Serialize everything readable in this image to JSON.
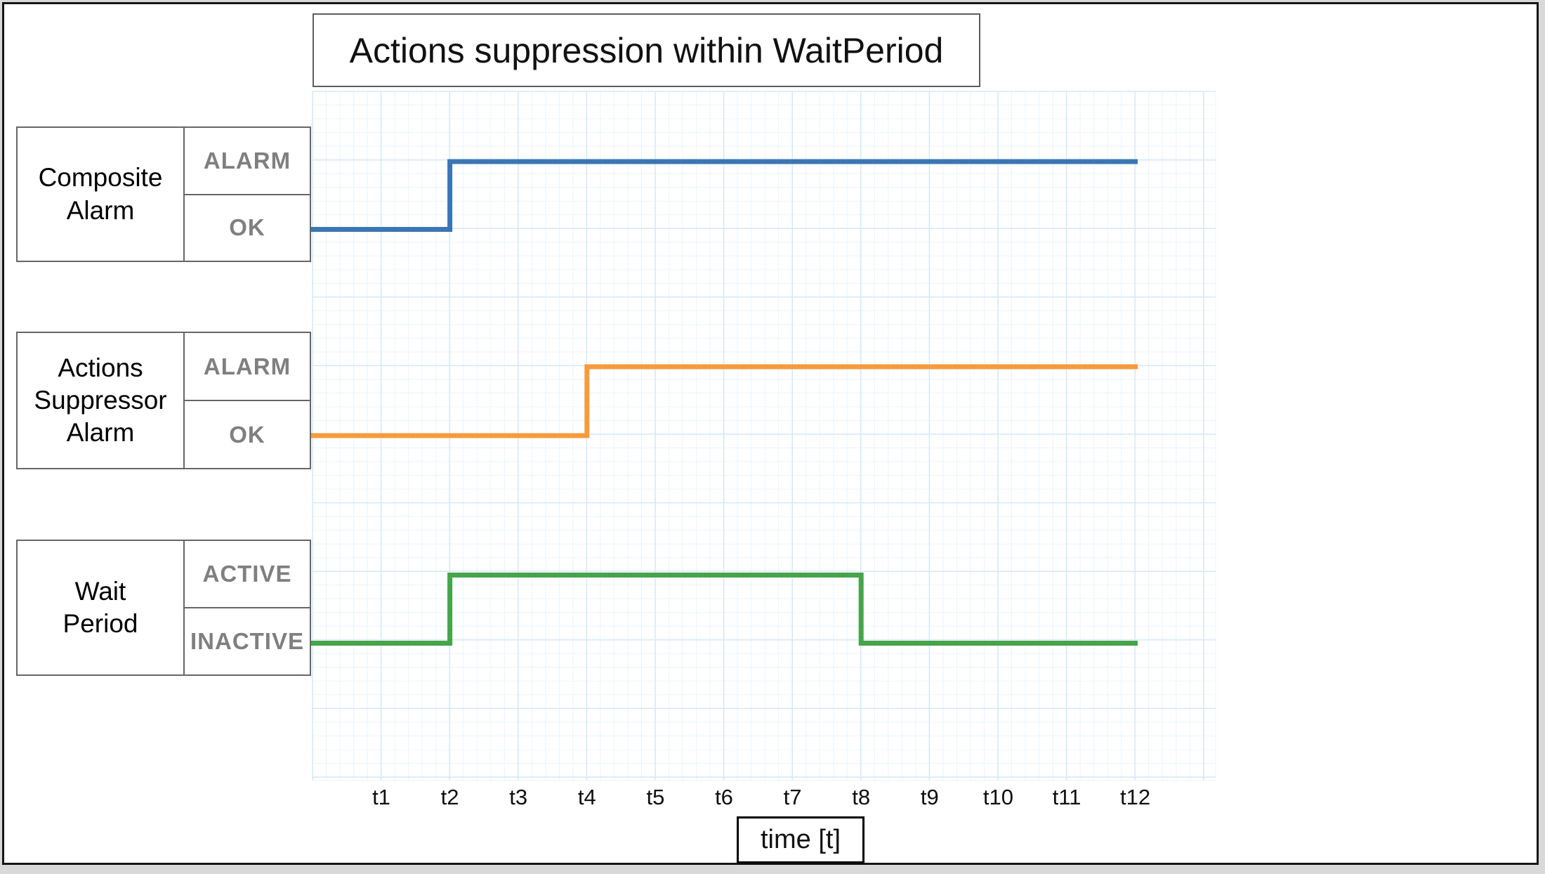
{
  "title": "Actions suppression within WaitPeriod",
  "colors": {
    "grid_minor": "#eaf4fb",
    "grid_major": "#d4e8f6",
    "box_border": "#666666",
    "state_text": "#7f7f7f",
    "page_border": "#161616",
    "blue": "#3b76b3",
    "orange": "#f69b3d",
    "green": "#46a44b"
  },
  "chart_data": {
    "type": "step-timeline",
    "title": "Actions suppression within WaitPeriod",
    "xlabel": "time [t]",
    "x_ticks": [
      "t1",
      "t2",
      "t3",
      "t4",
      "t5",
      "t6",
      "t7",
      "t8",
      "t9",
      "t10",
      "t11",
      "t12"
    ],
    "grid": true,
    "series": [
      {
        "name": "Composite Alarm",
        "name_lines": [
          "Composite",
          "Alarm"
        ],
        "color": "#3b76b3",
        "states": [
          "ALARM",
          "OK"
        ],
        "initial": "OK",
        "transitions": [
          {
            "at": "t2",
            "to": "ALARM"
          }
        ]
      },
      {
        "name": "Actions Suppressor Alarm",
        "name_lines": [
          "Actions",
          "Suppressor",
          "Alarm"
        ],
        "color": "#f69b3d",
        "states": [
          "ALARM",
          "OK"
        ],
        "initial": "OK",
        "transitions": [
          {
            "at": "t4",
            "to": "ALARM"
          }
        ]
      },
      {
        "name": "Wait Period",
        "name_lines": [
          "Wait",
          "Period"
        ],
        "color": "#46a44b",
        "states": [
          "ACTIVE",
          "INACTIVE"
        ],
        "initial": "INACTIVE",
        "transitions": [
          {
            "at": "t2",
            "to": "ACTIVE"
          },
          {
            "at": "t8",
            "to": "INACTIVE"
          }
        ]
      }
    ]
  }
}
